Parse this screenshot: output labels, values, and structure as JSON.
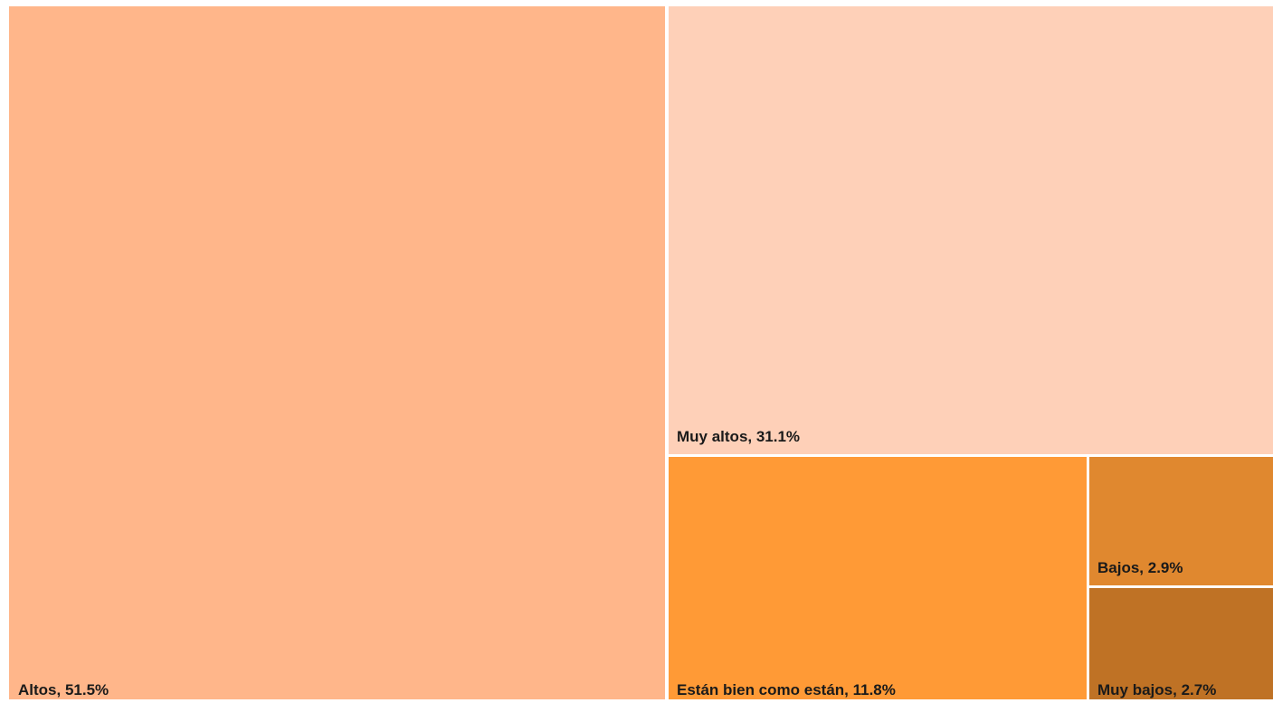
{
  "chart_data": {
    "type": "treemap",
    "title": "",
    "unit": "%",
    "tiles": [
      {
        "label": "Altos, 51.5%",
        "category": "Altos",
        "value": 51.5,
        "color": "#FFB68A"
      },
      {
        "label": "Muy altos, 31.1%",
        "category": "Muy altos",
        "value": 31.1,
        "color": "#FED0B8"
      },
      {
        "label": "Están bien como están, 11.8%",
        "category": "Están bien como están",
        "value": 11.8,
        "color": "#FF9A36"
      },
      {
        "label": "Bajos, 2.9%",
        "category": "Bajos",
        "value": 2.9,
        "color": "#E0882F"
      },
      {
        "label": "Muy bajos, 2.7%",
        "category": "Muy bajos",
        "value": 2.7,
        "color": "#BF7225"
      }
    ]
  }
}
